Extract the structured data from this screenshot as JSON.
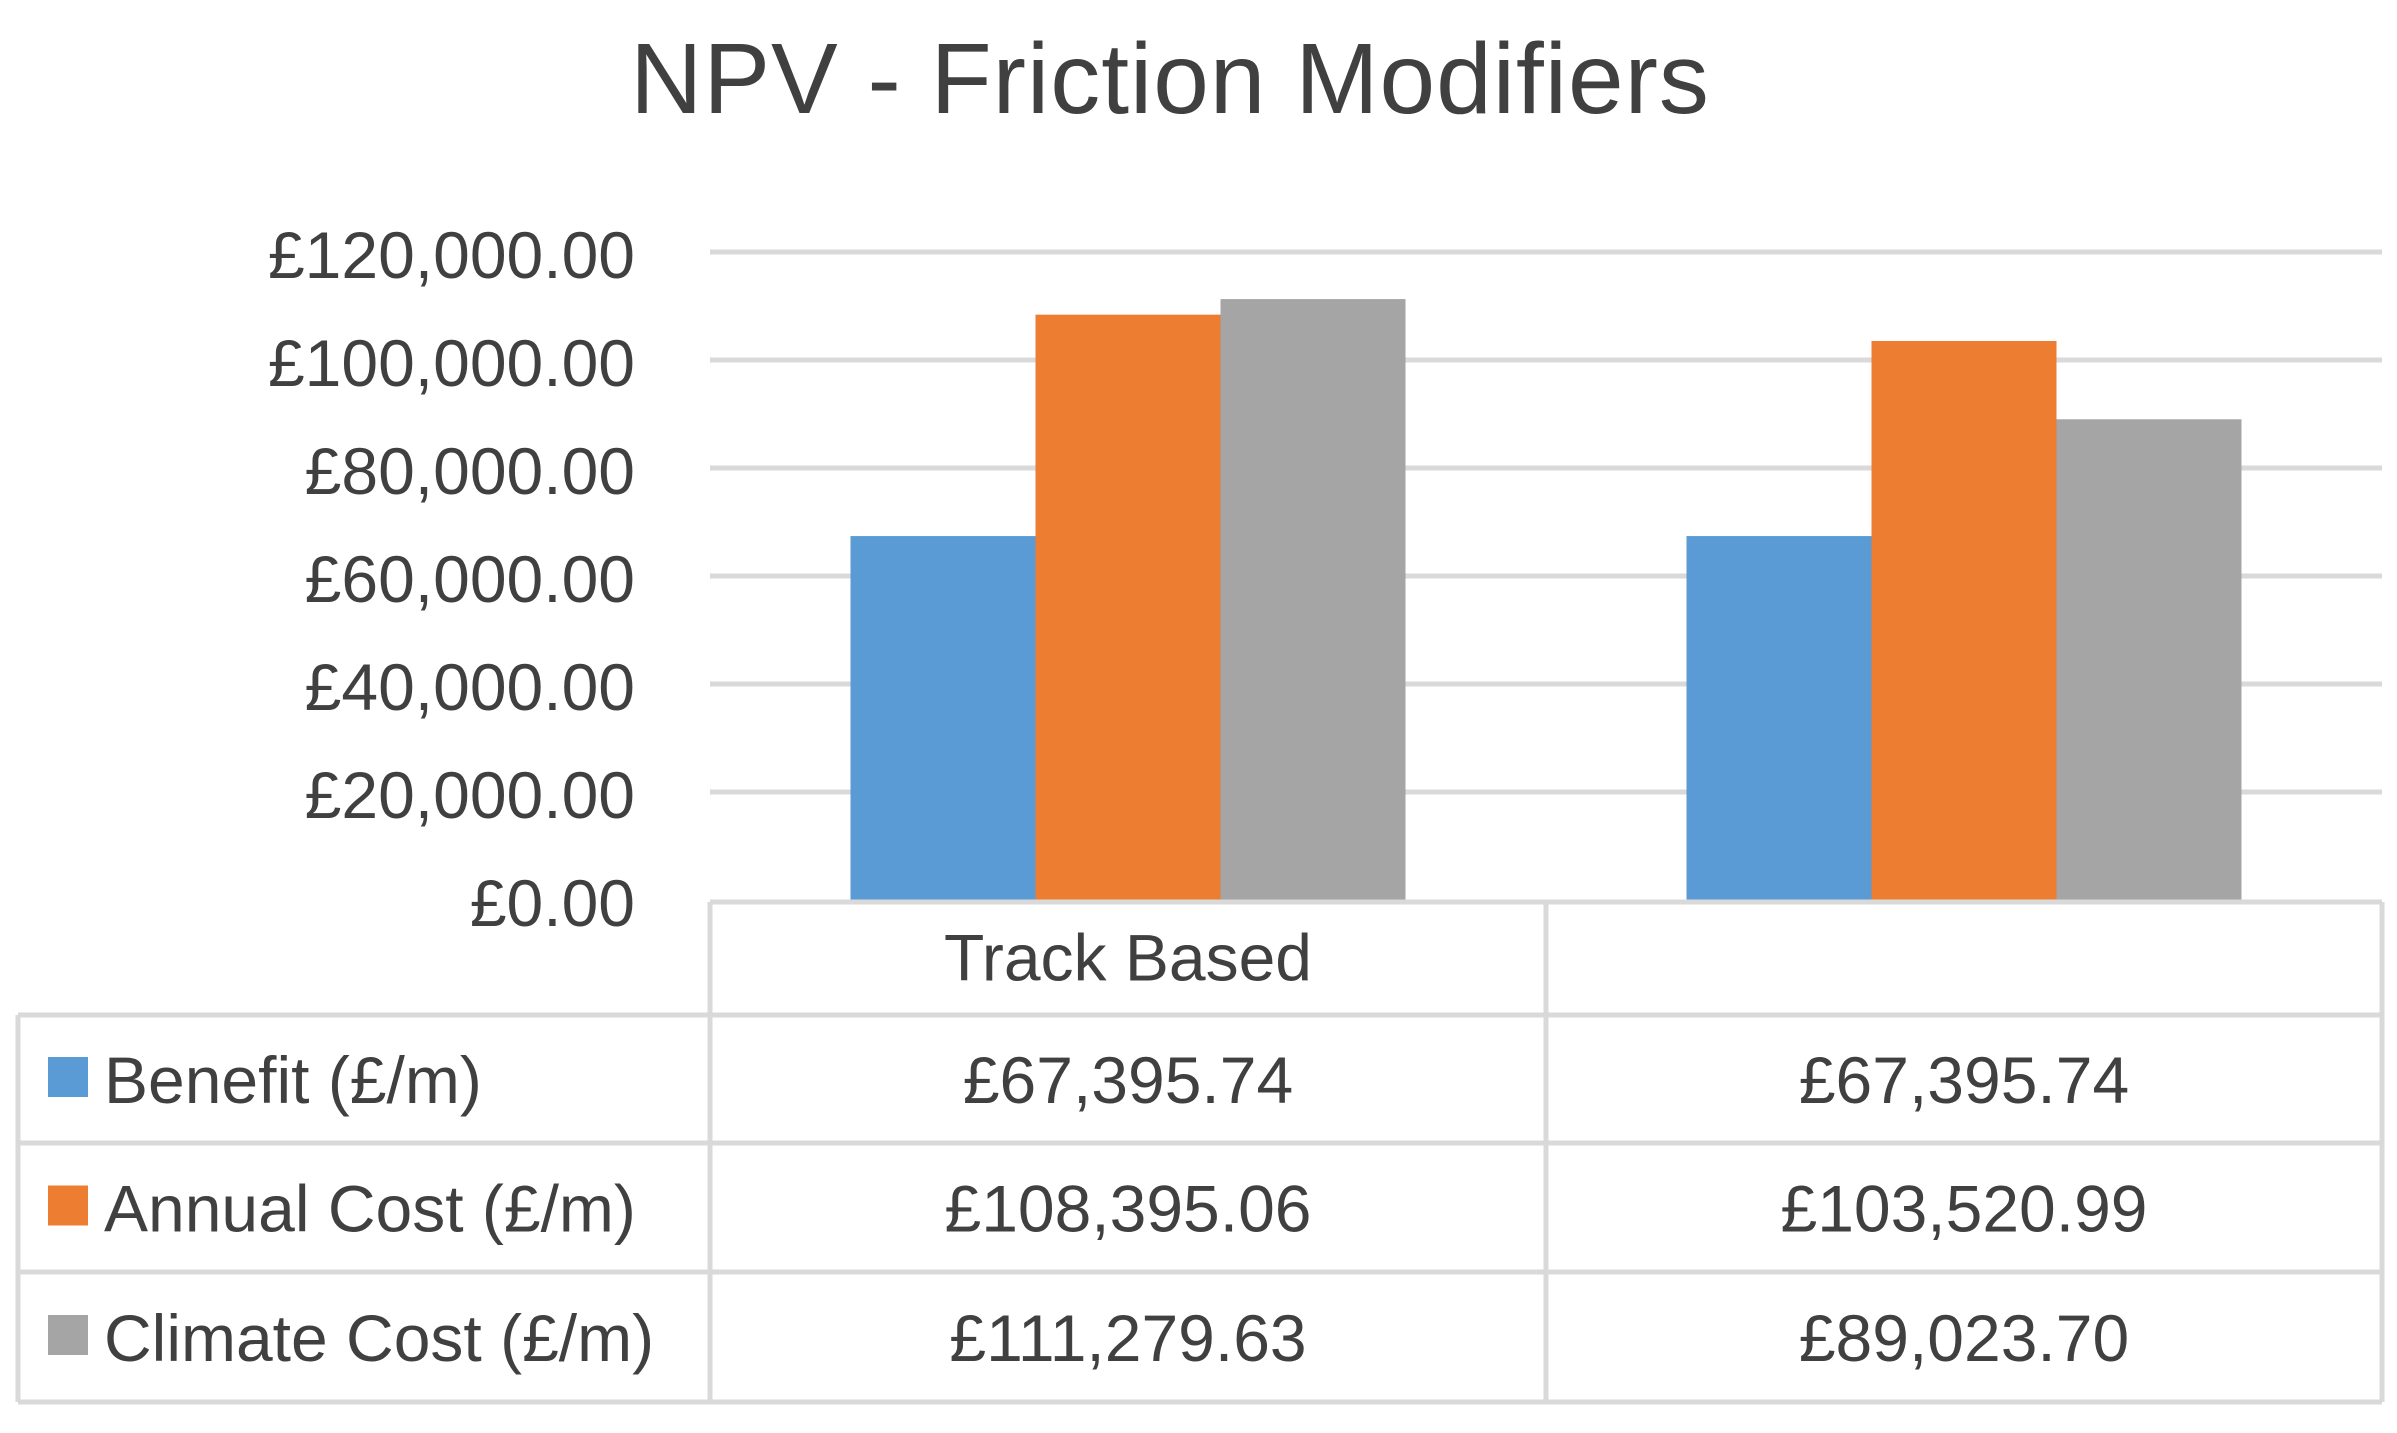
{
  "chart_data": {
    "type": "bar",
    "title": "NPV - Friction Modifiers",
    "xlabel": "",
    "ylabel": "",
    "ylim": [
      0,
      120000
    ],
    "y_ticks": [
      0,
      20000,
      40000,
      60000,
      80000,
      100000,
      120000
    ],
    "y_tick_labels": [
      "£0.00",
      "£20,000.00",
      "£40,000.00",
      "£60,000.00",
      "£80,000.00",
      "£100,000.00",
      "£120,000.00"
    ],
    "grid": true,
    "legend": "data-table",
    "categories": [
      "Track Based",
      ""
    ],
    "series": [
      {
        "name": "Benefit (£/m)",
        "color": "#5B9BD5",
        "values": [
          67395.74,
          67395.74
        ],
        "labels": [
          "£67,395.74",
          "£67,395.74"
        ]
      },
      {
        "name": "Annual Cost (£/m)",
        "color": "#ED7D31",
        "values": [
          108395.06,
          103520.99
        ],
        "labels": [
          "£108,395.06",
          "£103,520.99"
        ]
      },
      {
        "name": "Climate Cost (£/m)",
        "color": "#A5A5A5",
        "values": [
          111279.63,
          89023.7
        ],
        "labels": [
          "£111,279.63",
          "£89,023.70"
        ]
      }
    ]
  }
}
